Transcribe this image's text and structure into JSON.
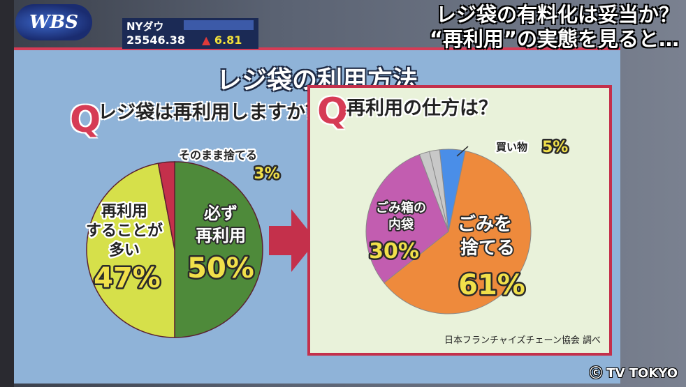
{
  "broadcast": {
    "logo": "WBS",
    "headline_line1": "レジ袋の有料化は妥当か？",
    "headline_line2": "“再利用”の実態を見ると…",
    "copyright": "ⓒ TV TOKYO"
  },
  "ticker": {
    "name": "NYダウ",
    "value": "25546.38",
    "arrow": "▲",
    "change": "6.81"
  },
  "board": {
    "title": "レジ袋の利用方法",
    "q_mark": "Q",
    "source": "日本フランチャイズチェーン協会 調べ"
  },
  "colors": {
    "green": "#4e8a3a",
    "yellow_green": "#d6e04a",
    "red": "#c4304b",
    "orange": "#ee8a3c",
    "purple": "#c25db0",
    "blue": "#4a8ee8",
    "gray": "#c8c8c8"
  },
  "chart_data": [
    {
      "type": "pie",
      "title": "レジ袋は再利用しますか？",
      "slices": [
        {
          "name": "必ず再利用",
          "value": 50,
          "label": "50%"
        },
        {
          "name": "再利用することが多い",
          "value": 47,
          "label": "47%"
        },
        {
          "name": "そのまま捨てる",
          "value": 3,
          "label": "3%"
        }
      ]
    },
    {
      "type": "pie",
      "title": "再利用の仕方は？",
      "slices": [
        {
          "name": "買い物",
          "value": 5,
          "label": "5%"
        },
        {
          "name": "ごみを捨てる",
          "value": 61,
          "label": "61%"
        },
        {
          "name": "ごみ箱の内袋",
          "value": 30,
          "label": "30%"
        },
        {
          "name": "",
          "value": 2,
          "label": ""
        },
        {
          "name": "",
          "value": 2,
          "label": ""
        }
      ]
    }
  ]
}
